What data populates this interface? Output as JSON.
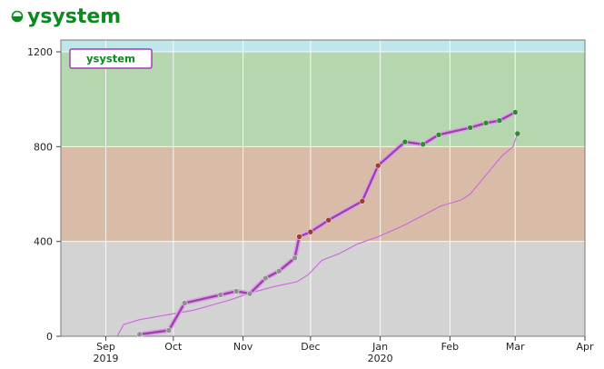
{
  "header": {
    "title": "ysystem",
    "icon": "half-circle-icon",
    "title_color": "#0a8a1f"
  },
  "chart_data": {
    "type": "line",
    "title": "",
    "xlabel": "",
    "ylabel": "",
    "ylim": [
      0,
      1250
    ],
    "xlim": [
      "2019-08-12",
      "2020-04-01"
    ],
    "y_ticks": [
      0,
      400,
      800,
      1200
    ],
    "x_ticks": [
      {
        "date": "2019-09-01",
        "label": "Sep",
        "sublabel": "2019"
      },
      {
        "date": "2019-10-01",
        "label": "Oct",
        "sublabel": ""
      },
      {
        "date": "2019-11-01",
        "label": "Nov",
        "sublabel": ""
      },
      {
        "date": "2019-12-01",
        "label": "Dec",
        "sublabel": ""
      },
      {
        "date": "2020-01-01",
        "label": "Jan",
        "sublabel": "2020"
      },
      {
        "date": "2020-02-01",
        "label": "Feb",
        "sublabel": ""
      },
      {
        "date": "2020-03-01",
        "label": "Mar",
        "sublabel": ""
      },
      {
        "date": "2020-04-01",
        "label": "Apr",
        "sublabel": ""
      }
    ],
    "grid": true,
    "legend": {
      "position": "top-left",
      "entries": [
        "ysystem"
      ]
    },
    "bands": [
      {
        "from": 0,
        "to": 400,
        "color": "#d3d3d3"
      },
      {
        "from": 400,
        "to": 800,
        "color": "#d8bca8"
      },
      {
        "from": 800,
        "to": 1200,
        "color": "#b5d7b0"
      },
      {
        "from": 1200,
        "to": 1250,
        "color": "#bfe6ea"
      }
    ],
    "series": [
      {
        "name": "ysystem",
        "style": "thick",
        "color": "#a23fb0",
        "points": [
          {
            "date": "2019-09-16",
            "value": 8,
            "color": "#909090"
          },
          {
            "date": "2019-09-29",
            "value": 25,
            "color": "#909090"
          },
          {
            "date": "2019-10-06",
            "value": 140,
            "color": "#909090"
          },
          {
            "date": "2019-10-22",
            "value": 175,
            "color": "#909090"
          },
          {
            "date": "2019-10-29",
            "value": 190,
            "color": "#909090"
          },
          {
            "date": "2019-11-04",
            "value": 180,
            "color": "#909090"
          },
          {
            "date": "2019-11-11",
            "value": 245,
            "color": "#909090"
          },
          {
            "date": "2019-11-17",
            "value": 275,
            "color": "#909090"
          },
          {
            "date": "2019-11-24",
            "value": 330,
            "color": "#909090"
          },
          {
            "date": "2019-11-26",
            "value": 420,
            "color": "#a33d2a"
          },
          {
            "date": "2019-12-01",
            "value": 440,
            "color": "#a33d2a"
          },
          {
            "date": "2019-12-09",
            "value": 490,
            "color": "#a33d2a"
          },
          {
            "date": "2019-12-24",
            "value": 570,
            "color": "#a33d2a"
          },
          {
            "date": "2019-12-31",
            "value": 720,
            "color": "#a33d2a"
          },
          {
            "date": "2020-01-12",
            "value": 820,
            "color": "#2e8b2e"
          },
          {
            "date": "2020-01-20",
            "value": 810,
            "color": "#2e8b2e"
          },
          {
            "date": "2020-01-27",
            "value": 850,
            "color": "#2e8b2e"
          },
          {
            "date": "2020-02-10",
            "value": 880,
            "color": "#2e8b2e"
          },
          {
            "date": "2020-02-17",
            "value": 900,
            "color": "#2e8b2e"
          },
          {
            "date": "2020-02-23",
            "value": 910,
            "color": "#2e8b2e"
          },
          {
            "date": "2020-03-01",
            "value": 945,
            "color": "#2e8b2e"
          }
        ]
      },
      {
        "name": "",
        "style": "thin",
        "color": "#cc66dd",
        "end_color": "#2e8b2e",
        "points": [
          {
            "date": "2019-09-06",
            "value": 0
          },
          {
            "date": "2019-09-09",
            "value": 50
          },
          {
            "date": "2019-09-16",
            "value": 70
          },
          {
            "date": "2019-09-25",
            "value": 85
          },
          {
            "date": "2019-10-10",
            "value": 110
          },
          {
            "date": "2019-10-25",
            "value": 150
          },
          {
            "date": "2019-11-05",
            "value": 185
          },
          {
            "date": "2019-11-15",
            "value": 210
          },
          {
            "date": "2019-11-25",
            "value": 230
          },
          {
            "date": "2019-11-30",
            "value": 260
          },
          {
            "date": "2019-12-06",
            "value": 320
          },
          {
            "date": "2019-12-14",
            "value": 350
          },
          {
            "date": "2019-12-22",
            "value": 390
          },
          {
            "date": "2019-12-31",
            "value": 420
          },
          {
            "date": "2020-01-12",
            "value": 470
          },
          {
            "date": "2020-01-20",
            "value": 510
          },
          {
            "date": "2020-01-28",
            "value": 550
          },
          {
            "date": "2020-02-06",
            "value": 575
          },
          {
            "date": "2020-02-10",
            "value": 600
          },
          {
            "date": "2020-02-17",
            "value": 680
          },
          {
            "date": "2020-02-24",
            "value": 760
          },
          {
            "date": "2020-02-29",
            "value": 800
          },
          {
            "date": "2020-03-02",
            "value": 855
          }
        ]
      }
    ]
  }
}
